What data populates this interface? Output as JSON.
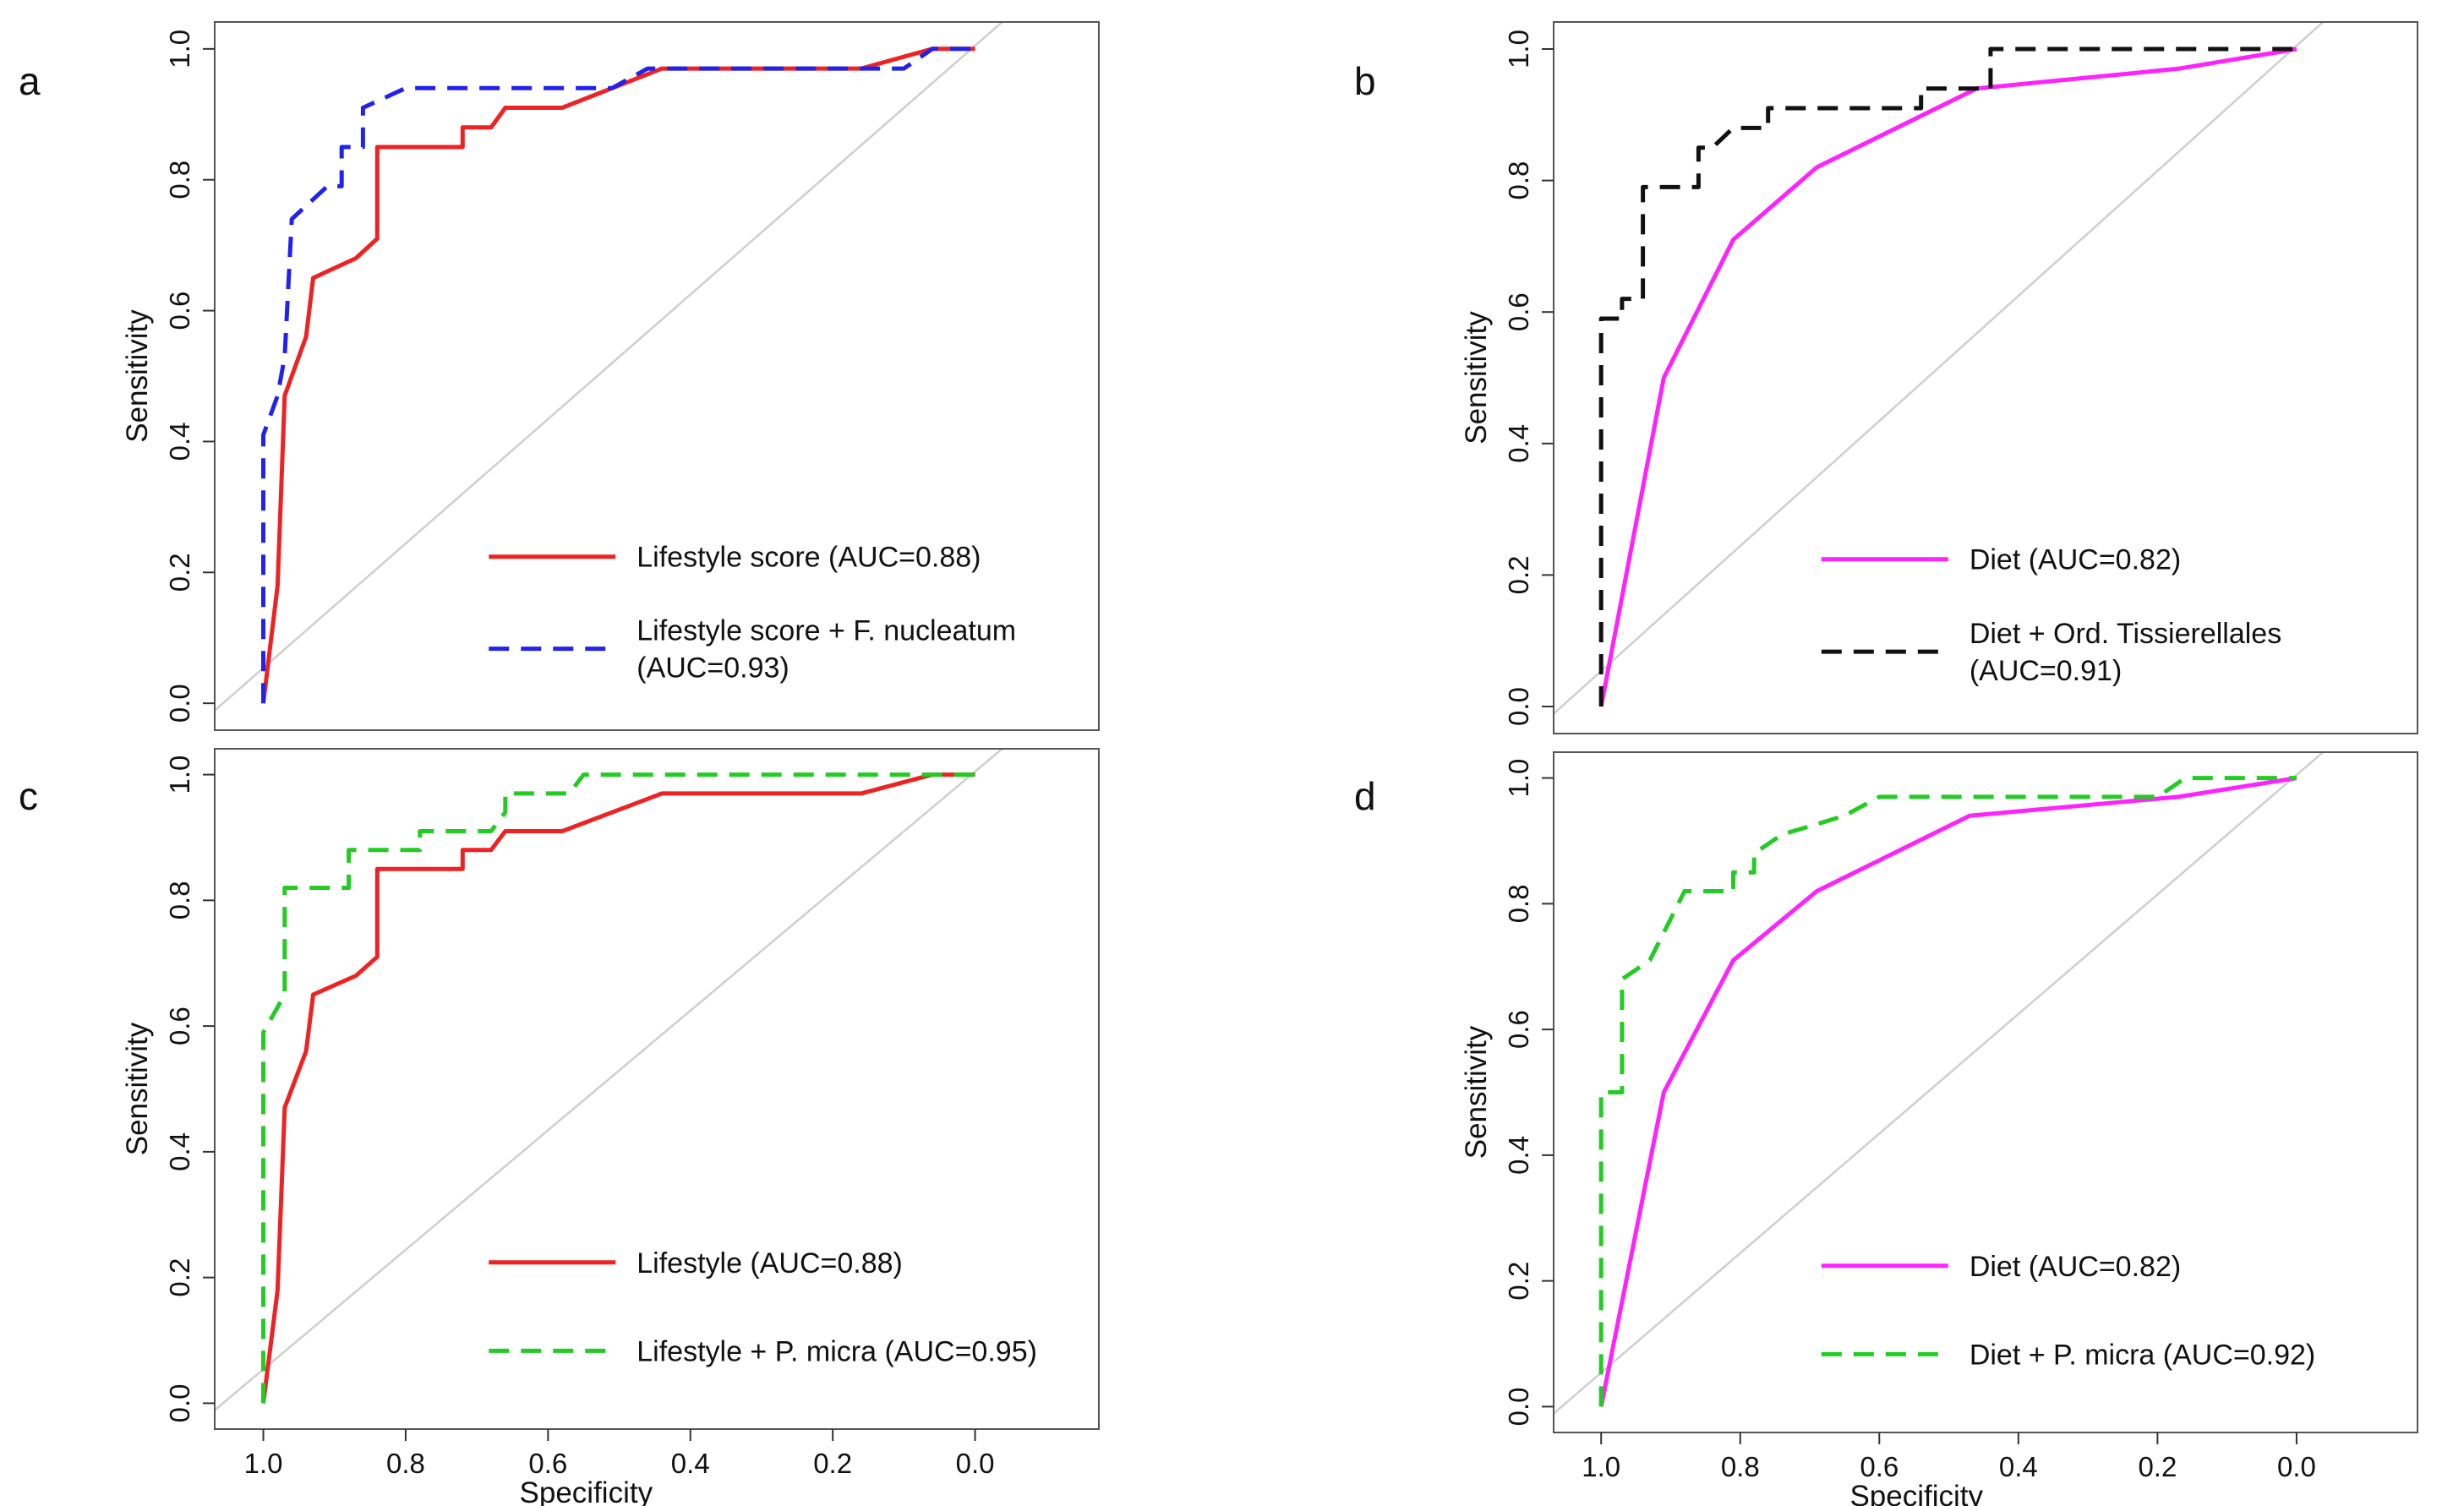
{
  "chart_data": [
    {
      "panel": "a",
      "type": "line",
      "xlabel": "",
      "ylabel": "Sensitivity",
      "xlim": [
        1.0,
        0.0
      ],
      "ylim": [
        0.0,
        1.0
      ],
      "x_ticks": [
        "1.0",
        "0.8",
        "0.6",
        "0.4",
        "0.2",
        "0.0"
      ],
      "y_ticks": [
        "0.0",
        "0.2",
        "0.4",
        "0.6",
        "0.8",
        "1.0"
      ],
      "x_ticks_shown": false,
      "reference_line": true,
      "legend_position": "bottom-right",
      "series": [
        {
          "legend": [
            "Lifestyle score (AUC=0.88)"
          ],
          "color": "#ee2222",
          "dash": "solid",
          "points": [
            [
              1.0,
              0.0
            ],
            [
              0.98,
              0.18
            ],
            [
              0.97,
              0.47
            ],
            [
              0.95,
              0.53
            ],
            [
              0.94,
              0.56
            ],
            [
              0.93,
              0.65
            ],
            [
              0.87,
              0.68
            ],
            [
              0.84,
              0.71
            ],
            [
              0.84,
              0.85
            ],
            [
              0.72,
              0.85
            ],
            [
              0.72,
              0.88
            ],
            [
              0.68,
              0.88
            ],
            [
              0.66,
              0.91
            ],
            [
              0.58,
              0.91
            ],
            [
              0.44,
              0.97
            ],
            [
              0.16,
              0.97
            ],
            [
              0.06,
              1.0
            ],
            [
              0.0,
              1.0
            ]
          ]
        },
        {
          "legend": [
            "Lifestyle score + F. nucleatum",
            "(AUC=0.93)"
          ],
          "color": "#2222ee",
          "dash": "dashed",
          "points": [
            [
              1.0,
              0.0
            ],
            [
              1.0,
              0.41
            ],
            [
              0.98,
              0.47
            ],
            [
              0.97,
              0.53
            ],
            [
              0.96,
              0.74
            ],
            [
              0.91,
              0.79
            ],
            [
              0.89,
              0.79
            ],
            [
              0.89,
              0.85
            ],
            [
              0.86,
              0.85
            ],
            [
              0.86,
              0.91
            ],
            [
              0.8,
              0.94
            ],
            [
              0.51,
              0.94
            ],
            [
              0.46,
              0.97
            ],
            [
              0.1,
              0.97
            ],
            [
              0.06,
              1.0
            ],
            [
              0.0,
              1.0
            ]
          ]
        }
      ]
    },
    {
      "panel": "b",
      "type": "line",
      "xlabel": "",
      "ylabel": "Sensitivity",
      "xlim": [
        1.0,
        0.0
      ],
      "ylim": [
        0.0,
        1.0
      ],
      "x_ticks": [
        "1.0",
        "0.8",
        "0.6",
        "0.4",
        "0.2",
        "0.0"
      ],
      "y_ticks": [
        "0.0",
        "0.2",
        "0.4",
        "0.6",
        "0.8",
        "1.0"
      ],
      "x_ticks_shown": false,
      "reference_line": true,
      "legend_position": "bottom-right",
      "series": [
        {
          "legend": [
            "Diet (AUC=0.82)"
          ],
          "color": "#ff22ff",
          "dash": "solid",
          "points": [
            [
              1.0,
              0.0
            ],
            [
              0.91,
              0.5
            ],
            [
              0.81,
              0.71
            ],
            [
              0.69,
              0.82
            ],
            [
              0.46,
              0.94
            ],
            [
              0.17,
              0.97
            ],
            [
              0.0,
              1.0
            ]
          ]
        },
        {
          "legend": [
            "Diet + Ord. Tissierellales",
            "(AUC=0.91)"
          ],
          "color": "#111111",
          "dash": "dashed",
          "points": [
            [
              1.0,
              0.0
            ],
            [
              1.0,
              0.59
            ],
            [
              0.97,
              0.59
            ],
            [
              0.97,
              0.62
            ],
            [
              0.94,
              0.62
            ],
            [
              0.94,
              0.79
            ],
            [
              0.86,
              0.79
            ],
            [
              0.86,
              0.85
            ],
            [
              0.84,
              0.85
            ],
            [
              0.81,
              0.88
            ],
            [
              0.76,
              0.88
            ],
            [
              0.76,
              0.91
            ],
            [
              0.54,
              0.91
            ],
            [
              0.54,
              0.94
            ],
            [
              0.44,
              0.94
            ],
            [
              0.44,
              1.0
            ],
            [
              0.0,
              1.0
            ]
          ]
        }
      ]
    },
    {
      "panel": "c",
      "type": "line",
      "xlabel": "Specificity",
      "ylabel": "Sensitivity",
      "xlim": [
        1.0,
        0.0
      ],
      "ylim": [
        0.0,
        1.0
      ],
      "x_ticks": [
        "1.0",
        "0.8",
        "0.6",
        "0.4",
        "0.2",
        "0.0"
      ],
      "y_ticks": [
        "0.0",
        "0.2",
        "0.4",
        "0.6",
        "0.8",
        "1.0"
      ],
      "x_ticks_shown": true,
      "reference_line": true,
      "legend_position": "bottom-right",
      "series": [
        {
          "legend": [
            "Lifestyle (AUC=0.88)"
          ],
          "color": "#ee2222",
          "dash": "solid",
          "points": [
            [
              1.0,
              0.0
            ],
            [
              0.98,
              0.18
            ],
            [
              0.97,
              0.47
            ],
            [
              0.95,
              0.53
            ],
            [
              0.94,
              0.56
            ],
            [
              0.93,
              0.65
            ],
            [
              0.87,
              0.68
            ],
            [
              0.84,
              0.71
            ],
            [
              0.84,
              0.85
            ],
            [
              0.72,
              0.85
            ],
            [
              0.72,
              0.88
            ],
            [
              0.68,
              0.88
            ],
            [
              0.66,
              0.91
            ],
            [
              0.58,
              0.91
            ],
            [
              0.44,
              0.97
            ],
            [
              0.16,
              0.97
            ],
            [
              0.06,
              1.0
            ],
            [
              0.0,
              1.0
            ]
          ]
        },
        {
          "legend": [
            "Lifestyle + P. micra (AUC=0.95)"
          ],
          "color": "#22cc22",
          "dash": "dashed",
          "points": [
            [
              1.0,
              0.0
            ],
            [
              1.0,
              0.59
            ],
            [
              0.97,
              0.65
            ],
            [
              0.97,
              0.82
            ],
            [
              0.88,
              0.82
            ],
            [
              0.88,
              0.88
            ],
            [
              0.78,
              0.88
            ],
            [
              0.78,
              0.91
            ],
            [
              0.68,
              0.91
            ],
            [
              0.66,
              0.94
            ],
            [
              0.66,
              0.97
            ],
            [
              0.57,
              0.97
            ],
            [
              0.55,
              1.0
            ],
            [
              0.0,
              1.0
            ]
          ]
        }
      ]
    },
    {
      "panel": "d",
      "type": "line",
      "xlabel": "Specificity",
      "ylabel": "Sensitivity",
      "xlim": [
        1.0,
        0.0
      ],
      "ylim": [
        0.0,
        1.0
      ],
      "x_ticks": [
        "1.0",
        "0.8",
        "0.6",
        "0.4",
        "0.2",
        "0.0"
      ],
      "y_ticks": [
        "0.0",
        "0.2",
        "0.4",
        "0.6",
        "0.8",
        "1.0"
      ],
      "x_ticks_shown": true,
      "reference_line": true,
      "legend_position": "bottom-right",
      "series": [
        {
          "legend": [
            "Diet (AUC=0.82)"
          ],
          "color": "#ff22ff",
          "dash": "solid",
          "points": [
            [
              1.0,
              0.0
            ],
            [
              0.91,
              0.5
            ],
            [
              0.81,
              0.71
            ],
            [
              0.69,
              0.82
            ],
            [
              0.47,
              0.94
            ],
            [
              0.17,
              0.97
            ],
            [
              0.0,
              1.0
            ]
          ]
        },
        {
          "legend": [
            "Diet + P. micra (AUC=0.92)"
          ],
          "color": "#22cc22",
          "dash": "dashed",
          "points": [
            [
              1.0,
              0.0
            ],
            [
              1.0,
              0.5
            ],
            [
              0.97,
              0.5
            ],
            [
              0.97,
              0.68
            ],
            [
              0.93,
              0.71
            ],
            [
              0.88,
              0.82
            ],
            [
              0.81,
              0.82
            ],
            [
              0.81,
              0.85
            ],
            [
              0.78,
              0.85
            ],
            [
              0.78,
              0.88
            ],
            [
              0.74,
              0.91
            ],
            [
              0.68,
              0.93
            ],
            [
              0.65,
              0.94
            ],
            [
              0.6,
              0.97
            ],
            [
              0.2,
              0.97
            ],
            [
              0.16,
              1.0
            ],
            [
              0.0,
              1.0
            ]
          ]
        }
      ]
    }
  ],
  "panel_labels": [
    "a",
    "b",
    "c",
    "d"
  ]
}
